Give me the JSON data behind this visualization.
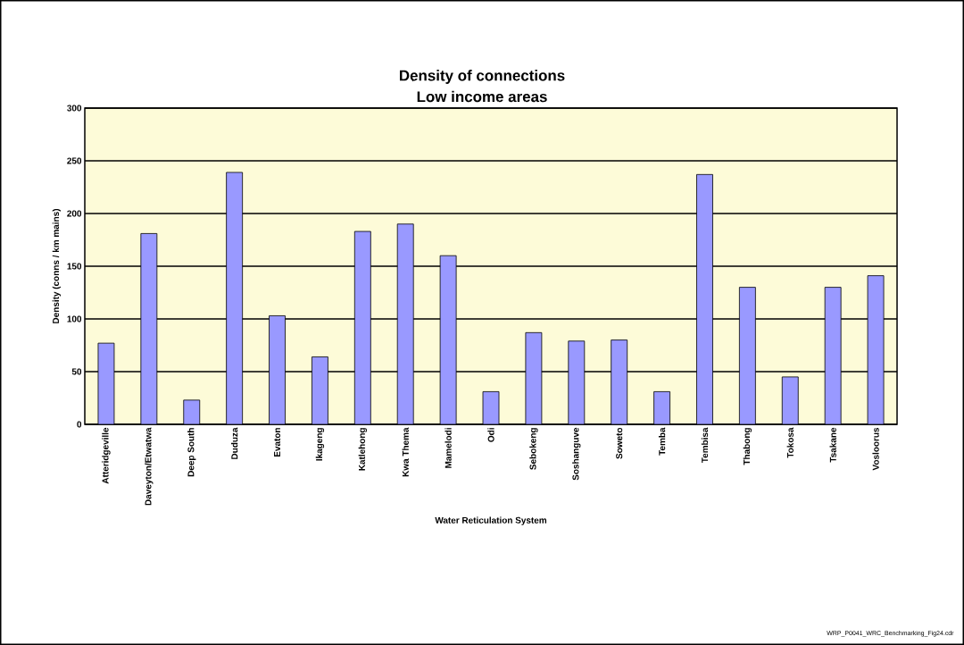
{
  "chart_data": {
    "type": "bar",
    "title": "Density of connections",
    "subtitle": "Low income areas",
    "xlabel": "Water Reticulation System",
    "ylabel": "Density (conns / km mains)",
    "categories": [
      "Atteridgeville",
      "Daveyton/Etwatwa",
      "Deep South",
      "Duduza",
      "Evaton",
      "Ikageng",
      "Katlehong",
      "Kwa Thema",
      "Mamelodi",
      "Odi",
      "Sebokeng",
      "Soshanguve",
      "Soweto",
      "Temba",
      "Tembisa",
      "Thabong",
      "Tokosa",
      "Tsakane",
      "Vosloorus"
    ],
    "values": [
      77,
      181,
      23,
      239,
      103,
      64,
      183,
      190,
      160,
      31,
      87,
      79,
      80,
      31,
      237,
      130,
      45,
      130,
      141
    ],
    "color": "#9999ff",
    "ylim": [
      0,
      300
    ],
    "yticks": [
      0,
      50,
      100,
      150,
      200,
      250,
      300
    ],
    "grid": "y",
    "annotations": [
      "WRP_P0041_WRC_Benchmarking_Fig24.cdr"
    ]
  }
}
